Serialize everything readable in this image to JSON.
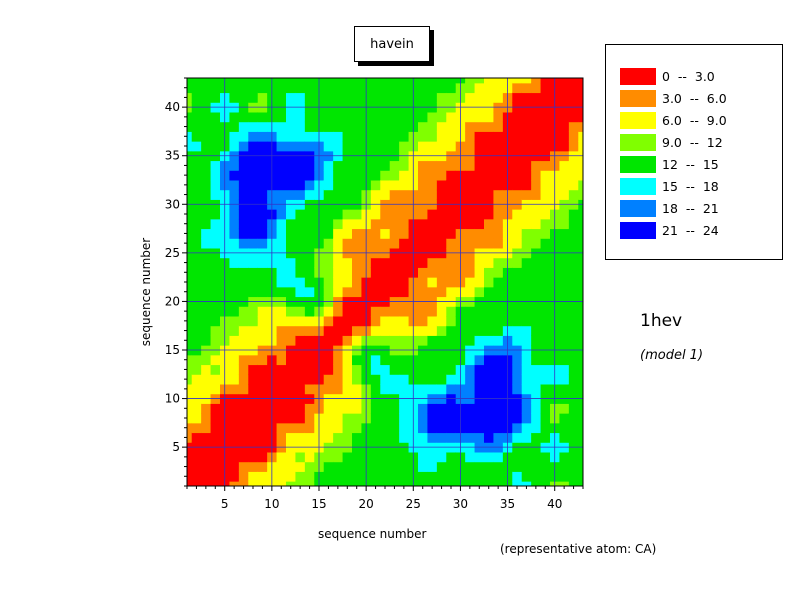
{
  "chart_data": {
    "type": "heatmap",
    "subtype": "contour",
    "title": "havein",
    "xlabel": "sequence number",
    "ylabel": "sequence number",
    "xlim": [
      1,
      43
    ],
    "ylim": [
      1,
      43
    ],
    "x_ticks": [
      "5",
      "10",
      "15",
      "20",
      "25",
      "30",
      "35",
      "40"
    ],
    "y_ticks": [
      "5",
      "10",
      "15",
      "20",
      "25",
      "30",
      "35",
      "40"
    ],
    "grid": true,
    "grid_step": 5,
    "legend_position": "top-right",
    "legend": [
      {
        "label": "0  --  3.0",
        "color": "#ff0000",
        "range": [
          0,
          3
        ]
      },
      {
        "label": "3.0  --  6.0",
        "color": "#ff8c00",
        "range": [
          3,
          6
        ]
      },
      {
        "label": "6.0  --  9.0",
        "color": "#ffff00",
        "range": [
          6,
          9
        ]
      },
      {
        "label": "9.0  --  12",
        "color": "#80ff00",
        "range": [
          9,
          12
        ]
      },
      {
        "label": "12  --  15",
        "color": "#00e600",
        "range": [
          12,
          15
        ]
      },
      {
        "label": "15  --  18",
        "color": "#00ffff",
        "range": [
          15,
          18
        ]
      },
      {
        "label": "18  --  21",
        "color": "#0080ff",
        "range": [
          18,
          21
        ]
      },
      {
        "label": "21  --  24",
        "color": "#0000ff",
        "range": [
          21,
          24
        ]
      }
    ],
    "protein": "1hev",
    "model": "(model 1)",
    "representative_atom": "(representative atom: CA)",
    "symmetric": true,
    "notable_regions": [
      {
        "x": 8,
        "y": 28,
        "value_range": "21 -- 24"
      },
      {
        "x": 8,
        "y": 34,
        "value_range": "21 -- 24"
      },
      {
        "x": 13,
        "y": 34,
        "value_range": "18 -- 21"
      },
      {
        "x": 28,
        "y": 8,
        "value_range": "21 -- 24"
      },
      {
        "x": 34,
        "y": 8,
        "value_range": "21 -- 24"
      },
      {
        "x": 34,
        "y": 13,
        "value_range": "18 -- 21"
      },
      {
        "x": 14,
        "y": 21,
        "value_range": "15 -- 18"
      },
      {
        "x": 21,
        "y": 14,
        "value_range": "15 -- 18"
      }
    ]
  }
}
